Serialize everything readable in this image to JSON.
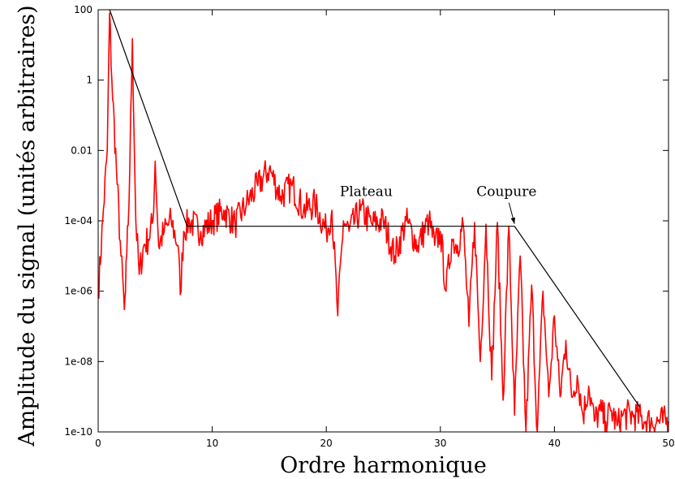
{
  "chart_data": {
    "type": "line",
    "title": "",
    "xlabel": "Ordre harmonique",
    "ylabel": "Amplitude du signal (unités arbitraires)",
    "xlim": [
      0,
      50
    ],
    "ylim": [
      1e-10,
      100
    ],
    "yscale": "log",
    "grid": false,
    "legend": "none",
    "x_ticks": [
      0,
      10,
      20,
      30,
      40,
      50
    ],
    "x_tick_labels": [
      "0",
      "10",
      "20",
      "30",
      "40",
      "50"
    ],
    "y_ticks": [
      1e-10,
      1e-08,
      1e-06,
      0.0001,
      0.01,
      1,
      100
    ],
    "y_tick_labels": [
      "1e-10",
      "1e-08",
      "1e-06",
      "1e-04",
      "0.01",
      "1",
      "100"
    ],
    "series": [
      {
        "color": "#ff0000",
        "style": "noisy-spectrum",
        "x": [
          0,
          0.4,
          0.8,
          1.0,
          1.2,
          1.6,
          2.0,
          2.3,
          2.4,
          2.5,
          2.7,
          3.0,
          3.3,
          3.6,
          4.0,
          4.4,
          4.8,
          5.0,
          5.3,
          5.8,
          6.4,
          7.0,
          7.2,
          7.5,
          8,
          9,
          10,
          11,
          12,
          13,
          14,
          15,
          16,
          17,
          18,
          19,
          20,
          20.5,
          21,
          21.5,
          22,
          23,
          24,
          25,
          26,
          27,
          28,
          29,
          29.5,
          30,
          30.5,
          31,
          31.5,
          32,
          32.5,
          33,
          33.5,
          34,
          34.5,
          35,
          35.5,
          36,
          36.5,
          37,
          37.5,
          38,
          38.5,
          39,
          39.5,
          40,
          40.5,
          41,
          41.5,
          42,
          42.5,
          43,
          43.5,
          44,
          44.5,
          45,
          45.5,
          46,
          47,
          48,
          50
        ],
        "y": [
          8e-07,
          0.0001,
          0.01,
          80,
          1,
          0.003,
          1e-05,
          3e-07,
          1e-06,
          1e-05,
          0.0003,
          15,
          0.0001,
          3e-06,
          2e-05,
          3e-05,
          0.0001,
          0.005,
          2e-05,
          5e-05,
          0.0001,
          2e-05,
          8e-07,
          5e-05,
          0.0001,
          5e-05,
          0.0001,
          0.0002,
          8e-05,
          0.0003,
          0.001,
          0.003,
          0.0005,
          0.001,
          0.0002,
          0.0003,
          5e-05,
          0.0002,
          2e-07,
          0.0001,
          5e-05,
          0.0002,
          8e-05,
          0.0001,
          1e-05,
          0.0001,
          2e-05,
          0.0001,
          2e-05,
          5e-05,
          1e-06,
          3e-05,
          2e-05,
          8e-05,
          1e-07,
          9e-05,
          1e-08,
          8e-05,
          3e-09,
          9e-05,
          8e-10,
          7e-05,
          3e-10,
          1e-05,
          1e-10,
          1.5e-06,
          1e-10,
          1e-06,
          1e-09,
          2e-07,
          1e-09,
          4e-08,
          1e-09,
          4e-09,
          3e-10,
          2e-09,
          2e-10,
          4e-10,
          2e-10,
          4e-10,
          1.5e-10,
          3e-10,
          3e-10,
          2e-10,
          2e-10
        ]
      },
      {
        "color": "#000000",
        "style": "envelope",
        "x": [
          1,
          7.8,
          36.5,
          47.5
        ],
        "y": [
          100,
          7e-05,
          7e-05,
          5e-10
        ]
      }
    ],
    "annotations": [
      {
        "text": "Plateau",
        "x": 23.5,
        "y": 0.0005
      },
      {
        "text": "Coupure",
        "x": 35.8,
        "y": 0.0005,
        "arrow_to": [
          36.5,
          7e-05
        ]
      }
    ]
  }
}
